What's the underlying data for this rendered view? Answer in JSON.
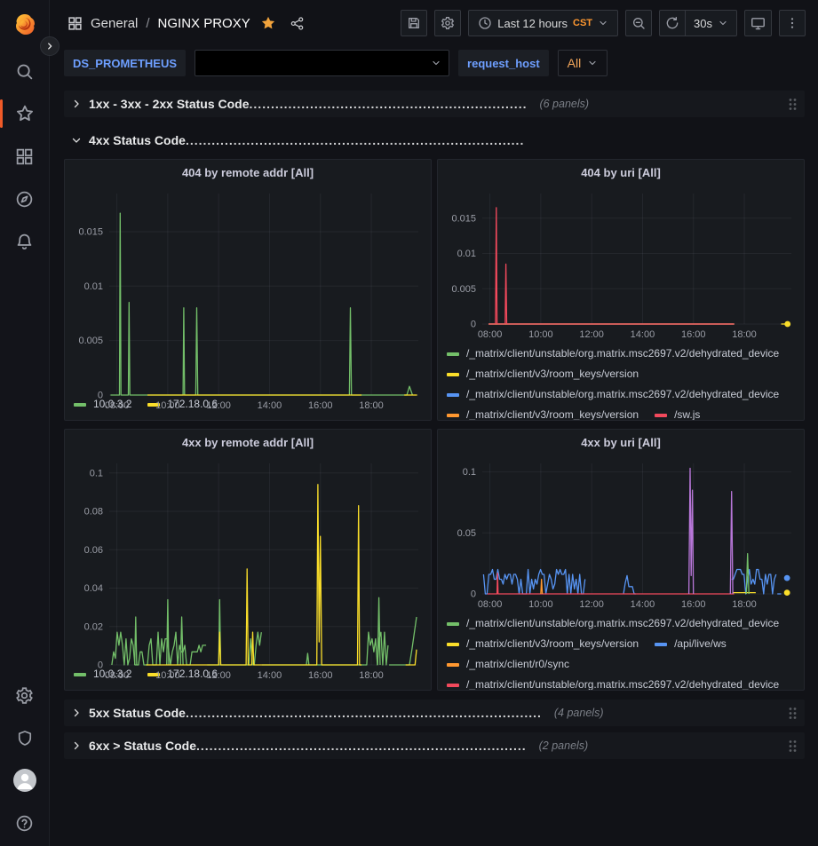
{
  "colors": {
    "green": "#73BF69",
    "yellow": "#FADE2A",
    "blue": "#5794F2",
    "orange": "#FF9830",
    "red": "#F2495C",
    "purple": "#B877D9",
    "star": "#F2A33C",
    "link_blue": "#6E9FFF",
    "tz_orange": "#FF9830",
    "variable_orange": "#F2A65A",
    "panel_bg": "#181b1f",
    "page_bg": "#111217",
    "grid_line": "rgba(204,204,220,0.07)",
    "axis_text": "#9a9da6"
  },
  "nav": {
    "breadcrumb": {
      "section": "General",
      "separator": "/",
      "title": "NGINX PROXY"
    },
    "time_range": "Last 12 hours",
    "timezone": "CST",
    "refresh_interval": "30s"
  },
  "variables": {
    "ds_label": "DS_PROMETHEUS",
    "ds_value": "",
    "request_host_label": "request_host",
    "request_host_value": "All"
  },
  "rows": [
    {
      "title": "1xx - 3xx - 2xx Status Code",
      "leader": " ................................................................",
      "meta": "(6 panels)",
      "collapsed": true
    },
    {
      "title": "4xx Status Code",
      "leader": " ..............................................................................",
      "meta": "",
      "collapsed": false
    },
    {
      "title": "5xx Status Code",
      "leader": " ..................................................................................",
      "meta": "(4 panels)",
      "collapsed": true
    },
    {
      "title": "6xx > Status Code",
      "leader": " ............................................................................",
      "meta": "(2 panels)",
      "collapsed": true
    }
  ],
  "chart_data": [
    {
      "type": "line",
      "title": "404 by remote addr [All]",
      "x_range": [
        7.7,
        19.85
      ],
      "ylim": [
        0,
        0.0185
      ],
      "yticks": [
        {
          "v": 0,
          "label": "0"
        },
        {
          "v": 0.005,
          "label": "0.005"
        },
        {
          "v": 0.01,
          "label": "0.01"
        },
        {
          "v": 0.015,
          "label": "0.015"
        }
      ],
      "xticks": [
        {
          "v": 8,
          "label": "08:00"
        },
        {
          "v": 10,
          "label": "10:00"
        },
        {
          "v": 12,
          "label": "12:00"
        },
        {
          "v": 14,
          "label": "14:00"
        },
        {
          "v": 16,
          "label": "16:00"
        },
        {
          "v": 18,
          "label": "18:00"
        }
      ],
      "series": [
        {
          "name": "10.0.3.2",
          "color": "#73BF69",
          "paths": [
            [
              [
                7.75,
                0
              ],
              [
                8.1,
                0
              ],
              [
                8.13,
                0.0167
              ],
              [
                8.16,
                0
              ],
              [
                8.45,
                0
              ],
              [
                8.48,
                0.0085
              ],
              [
                8.51,
                0
              ],
              [
                10.6,
                0
              ],
              [
                10.63,
                0.008
              ],
              [
                10.66,
                0
              ],
              [
                11.1,
                0
              ],
              [
                11.14,
                0.008
              ],
              [
                11.18,
                0
              ],
              [
                17.14,
                0
              ],
              [
                17.18,
                0.008
              ],
              [
                17.22,
                0
              ],
              [
                19.4,
                0
              ],
              [
                19.5,
                0.0008
              ],
              [
                19.62,
                0
              ]
            ]
          ]
        },
        {
          "name": "172.18.0.6",
          "color": "#FADE2A",
          "paths": [
            [
              [
                9.2,
                0
              ],
              [
                17.62,
                0
              ]
            ],
            [
              [
                19.3,
                0
              ],
              [
                19.8,
                0
              ]
            ]
          ]
        }
      ],
      "legend": [
        {
          "name": "10.0.3.2",
          "color": "#73BF69"
        },
        {
          "name": "172.18.0.6",
          "color": "#FADE2A"
        }
      ],
      "legend_clip": false
    },
    {
      "type": "line",
      "title": "404 by uri [All]",
      "x_range": [
        7.7,
        19.85
      ],
      "ylim": [
        0,
        0.0185
      ],
      "yticks": [
        {
          "v": 0,
          "label": "0"
        },
        {
          "v": 0.005,
          "label": "0.005"
        },
        {
          "v": 0.01,
          "label": "0.01"
        },
        {
          "v": 0.015,
          "label": "0.015"
        }
      ],
      "xticks": [
        {
          "v": 8,
          "label": "08:00"
        },
        {
          "v": 10,
          "label": "10:00"
        },
        {
          "v": 12,
          "label": "12:00"
        },
        {
          "v": 14,
          "label": "14:00"
        },
        {
          "v": 16,
          "label": "16:00"
        },
        {
          "v": 18,
          "label": "18:00"
        }
      ],
      "series": [
        {
          "name": "/_matrix/client/unstable/org.matrix.msc2697.v2/dehydrated_device",
          "color": "#73BF69",
          "paths": [
            [
              [
                7.95,
                0
              ],
              [
                17.6,
                0
              ]
            ]
          ]
        },
        {
          "name": "/_matrix/client/v3/room_keys/version",
          "color": "#FADE2A",
          "paths": [
            [
              [
                7.95,
                0
              ],
              [
                17.6,
                0
              ]
            ],
            [
              [
                19.45,
                0
              ],
              [
                19.7,
                0
              ]
            ]
          ]
        },
        {
          "name": "/_matrix/client/unstable/org.matrix.msc2697.v2/dehydrated_device",
          "color": "#5794F2",
          "paths": [
            [
              [
                7.95,
                0
              ],
              [
                17.6,
                0
              ]
            ]
          ]
        },
        {
          "name": "/_matrix/client/v3/room_keys/version",
          "color": "#FF9830",
          "paths": [
            [
              [
                7.95,
                0
              ],
              [
                17.6,
                0
              ]
            ]
          ]
        },
        {
          "name": "/sw.js",
          "color": "#F2495C",
          "paths": [
            [
              [
                7.95,
                0
              ],
              [
                8.22,
                0
              ],
              [
                8.25,
                0.0165
              ],
              [
                8.28,
                0
              ],
              [
                8.6,
                0
              ],
              [
                8.63,
                0.0085
              ],
              [
                8.66,
                0
              ],
              [
                17.6,
                0
              ]
            ]
          ]
        }
      ],
      "dots": [
        {
          "x": 19.7,
          "y": 0,
          "color": "#FADE2A"
        }
      ],
      "legend": [
        {
          "name": "/_matrix/client/unstable/org.matrix.msc2697.v2/dehydrated_device",
          "color": "#73BF69"
        },
        {
          "name": "/_matrix/client/v3/room_keys/version",
          "color": "#FADE2A"
        },
        {
          "name": "/_matrix/client/unstable/org.matrix.msc2697.v2/dehydrated_device",
          "color": "#5794F2"
        },
        {
          "name": "/_matrix/client/v3/room_keys/version",
          "color": "#FF9830"
        },
        {
          "name": "/sw.js",
          "color": "#F2495C"
        }
      ],
      "legend_clip": true
    },
    {
      "type": "line",
      "title": "4xx by remote addr [All]",
      "x_range": [
        7.7,
        19.85
      ],
      "ylim": [
        0,
        0.105
      ],
      "yticks": [
        {
          "v": 0,
          "label": "0"
        },
        {
          "v": 0.02,
          "label": "0.02"
        },
        {
          "v": 0.04,
          "label": "0.04"
        },
        {
          "v": 0.06,
          "label": "0.06"
        },
        {
          "v": 0.08,
          "label": "0.08"
        },
        {
          "v": 0.1,
          "label": "0.1"
        }
      ],
      "xticks": [
        {
          "v": 8,
          "label": "08:00"
        },
        {
          "v": 10,
          "label": "10:00"
        },
        {
          "v": 12,
          "label": "12:00"
        },
        {
          "v": 14,
          "label": "14:00"
        },
        {
          "v": 16,
          "label": "16:00"
        },
        {
          "v": 18,
          "label": "18:00"
        }
      ],
      "series": [
        {
          "name": "10.0.3.2",
          "color": "#73BF69",
          "noise": [
            {
              "from": 7.8,
              "to": 11.55,
              "step": 0.07,
              "min": 0,
              "max": 0.017,
              "seed": 3
            },
            {
              "from": 13.05,
              "to": 13.7,
              "step": 0.07,
              "min": 0,
              "max": 0.017,
              "seed": 5
            },
            {
              "from": 17.75,
              "to": 18.7,
              "step": 0.07,
              "min": 0,
              "max": 0.017,
              "seed": 7
            }
          ],
          "paths": [
            [
              [
                8.7,
                0
              ],
              [
                8.74,
                0.025
              ],
              [
                8.78,
                0
              ]
            ],
            [
              [
                9.96,
                0
              ],
              [
                10.0,
                0.034
              ],
              [
                10.04,
                0
              ]
            ],
            [
              [
                10.5,
                0
              ],
              [
                10.55,
                0.025
              ],
              [
                10.6,
                0
              ]
            ],
            [
              [
                11.55,
                0
              ],
              [
                13.05,
                0
              ]
            ],
            [
              [
                12.0,
                0
              ],
              [
                12.04,
                0.034
              ],
              [
                12.08,
                0
              ]
            ],
            [
              [
                13.7,
                0
              ],
              [
                17.75,
                0
              ]
            ],
            [
              [
                15.45,
                0
              ],
              [
                15.5,
                0.006
              ],
              [
                15.55,
                0
              ]
            ],
            [
              [
                18.25,
                0
              ],
              [
                18.3,
                0.035
              ],
              [
                18.35,
                0
              ]
            ],
            [
              [
                18.7,
                0
              ],
              [
                19.5,
                0
              ]
            ],
            [
              [
                19.5,
                0
              ],
              [
                19.6,
                0.008
              ],
              [
                19.78,
                0.025
              ]
            ]
          ]
        },
        {
          "name": "172.18.0.6",
          "color": "#FADE2A",
          "paths": [
            [
              [
                9.15,
                0
              ],
              [
                12.0,
                0
              ],
              [
                12.04,
                0.017
              ],
              [
                12.08,
                0
              ],
              [
                13.08,
                0
              ],
              [
                13.12,
                0.05
              ],
              [
                13.16,
                0
              ],
              [
                13.3,
                0
              ],
              [
                13.34,
                0.017
              ],
              [
                13.38,
                0
              ],
              [
                15.86,
                0
              ],
              [
                15.9,
                0.094
              ],
              [
                15.95,
                0.012
              ],
              [
                16.0,
                0.067
              ],
              [
                16.05,
                0
              ],
              [
                17.46,
                0
              ],
              [
                17.5,
                0.083
              ],
              [
                17.54,
                0
              ],
              [
                17.62,
                0
              ]
            ],
            [
              [
                19.35,
                0
              ],
              [
                19.72,
                0
              ],
              [
                19.78,
                0.008
              ]
            ]
          ]
        }
      ],
      "legend": [
        {
          "name": "10.0.3.2",
          "color": "#73BF69"
        },
        {
          "name": "172.18.0.6",
          "color": "#FADE2A"
        }
      ],
      "legend_clip": false
    },
    {
      "type": "line",
      "title": "4xx by uri [All]",
      "x_range": [
        7.7,
        19.85
      ],
      "ylim": [
        0,
        0.107
      ],
      "yticks": [
        {
          "v": 0,
          "label": "0"
        },
        {
          "v": 0.05,
          "label": "0.05"
        },
        {
          "v": 0.1,
          "label": "0.1"
        }
      ],
      "xticks": [
        {
          "v": 8,
          "label": "08:00"
        },
        {
          "v": 10,
          "label": "10:00"
        },
        {
          "v": 12,
          "label": "12:00"
        },
        {
          "v": 14,
          "label": "14:00"
        },
        {
          "v": 16,
          "label": "16:00"
        },
        {
          "v": 18,
          "label": "18:00"
        }
      ],
      "series": [
        {
          "name": "/api/live/ws",
          "color": "#5794F2",
          "noise": [
            {
              "from": 7.75,
              "to": 11.8,
              "step": 0.07,
              "min": 0,
              "max": 0.02,
              "seed": 11
            },
            {
              "from": 13.25,
              "to": 13.8,
              "step": 0.07,
              "min": 0,
              "max": 0.015,
              "seed": 13
            },
            {
              "from": 17.5,
              "to": 19.3,
              "step": 0.07,
              "min": 0,
              "max": 0.02,
              "seed": 17
            }
          ],
          "paths": [
            [
              [
                19.3,
                0
              ],
              [
                19.45,
                0
              ]
            ]
          ]
        },
        {
          "name": "/_matrix/client/unstable/org.matrix.msc2697.v2/dehydrated_device",
          "color": "#F2495C",
          "paths": [
            [
              [
                7.9,
                0
              ],
              [
                8.28,
                0
              ],
              [
                8.3,
                0.017
              ],
              [
                8.32,
                0
              ],
              [
                17.6,
                0
              ]
            ]
          ]
        },
        {
          "name": "/_matrix/client/r0/sync",
          "color": "#FF9830",
          "paths": [
            [
              [
                10.0,
                0
              ],
              [
                10.03,
                0.012
              ],
              [
                10.06,
                0
              ]
            ]
          ]
        },
        {
          "name": "/_matrix/client/v3/room_keys/version",
          "color": "#FADE2A",
          "paths": [
            [
              [
                17.55,
                0.001
              ],
              [
                18.45,
                0.001
              ]
            ]
          ]
        },
        {
          "name": "/_matrix/client/unstable/org.matrix.msc2697.v2/dehydrated_device",
          "color": "#73BF69",
          "paths": [
            [
              [
                18.08,
                0
              ],
              [
                18.13,
                0.033
              ],
              [
                18.18,
                0
              ]
            ]
          ]
        },
        {
          "name": "/_matrix/client/unstable/org.matrix.msc2697.v2/dehydrated_device",
          "color": "#B877D9",
          "paths": [
            [
              [
                15.82,
                0
              ],
              [
                15.87,
                0.103
              ],
              [
                15.91,
                0.015
              ],
              [
                15.96,
                0.085
              ],
              [
                16.0,
                0
              ]
            ],
            [
              [
                17.45,
                0
              ],
              [
                17.5,
                0.084
              ],
              [
                17.55,
                0
              ]
            ]
          ]
        }
      ],
      "dots": [
        {
          "x": 19.68,
          "y": 0.013,
          "color": "#5794F2"
        },
        {
          "x": 19.68,
          "y": 0.001,
          "color": "#FADE2A"
        }
      ],
      "legend": [
        {
          "name": "/_matrix/client/unstable/org.matrix.msc2697.v2/dehydrated_device",
          "color": "#73BF69"
        },
        {
          "name": "/_matrix/client/v3/room_keys/version",
          "color": "#FADE2A"
        },
        {
          "name": "/api/live/ws",
          "color": "#5794F2"
        },
        {
          "name": "/_matrix/client/r0/sync",
          "color": "#FF9830"
        },
        {
          "name": "/_matrix/client/unstable/org.matrix.msc2697.v2/dehydrated_device",
          "color": "#F2495C"
        }
      ],
      "legend_clip": true
    }
  ]
}
